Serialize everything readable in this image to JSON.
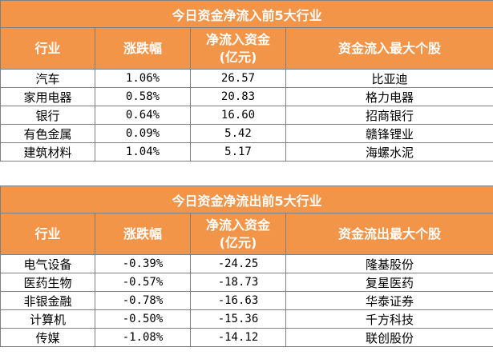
{
  "inflow": {
    "title": "今日资金净流入前5大行业",
    "headers": [
      "行业",
      "涨跌幅",
      "净流入资金",
      "(亿元)",
      "资金流入最大个股"
    ],
    "rows": [
      {
        "industry": "汽车",
        "change": "1.06%",
        "net": "26.57",
        "stock": "比亚迪"
      },
      {
        "industry": "家用电器",
        "change": "0.58%",
        "net": "20.83",
        "stock": "格力电器"
      },
      {
        "industry": "银行",
        "change": "0.64%",
        "net": "16.60",
        "stock": "招商银行"
      },
      {
        "industry": "有色金属",
        "change": "0.09%",
        "net": "5.42",
        "stock": "赣锋锂业"
      },
      {
        "industry": "建筑材料",
        "change": "1.04%",
        "net": "5.17",
        "stock": "海螺水泥"
      }
    ]
  },
  "outflow": {
    "title": "今日资金净流出前5大行业",
    "headers": [
      "行业",
      "涨跌幅",
      "净流入资金",
      "(亿元)",
      "资金流出最大个股"
    ],
    "rows": [
      {
        "industry": "电气设备",
        "change": "-0.39%",
        "net": "-24.25",
        "stock": "隆基股份"
      },
      {
        "industry": "医药生物",
        "change": "-0.57%",
        "net": "-18.73",
        "stock": "复星医药"
      },
      {
        "industry": "非银金融",
        "change": "-0.78%",
        "net": "-16.63",
        "stock": "华泰证券"
      },
      {
        "industry": "计算机",
        "change": "-0.50%",
        "net": "-15.36",
        "stock": "千方科技"
      },
      {
        "industry": "传媒",
        "change": "-1.08%",
        "net": "-14.12",
        "stock": "联创股份"
      }
    ]
  }
}
